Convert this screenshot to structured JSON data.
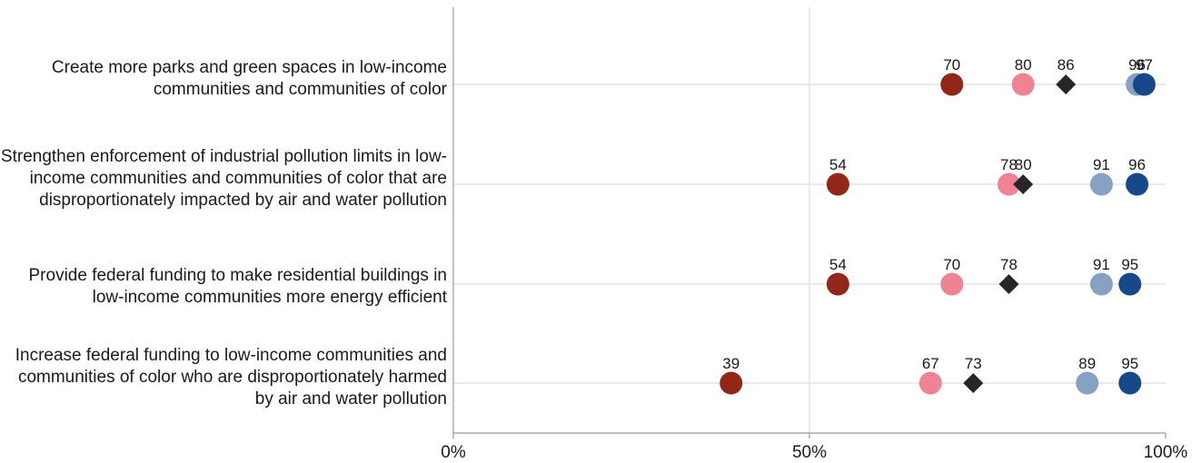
{
  "chart_data": {
    "type": "scatter",
    "orientation": "horizontal-dot-plot",
    "xlim": [
      0,
      100
    ],
    "x_ticks": [
      "0%",
      "50%",
      "100%"
    ],
    "grid": "vertical gridline at 50%",
    "legend": "none",
    "categories": [
      "Create more parks and green spaces in low-income communities and communities of color",
      "Strengthen enforcement of industrial pollution limits in low-income communities and communities of color that are disproportionately impacted by air and water pollution",
      "Provide federal funding to make residential buildings in low-income communities more energy efficient",
      "Increase federal funding to low-income communities and communities of color who are disproportionately harmed by air and water pollution"
    ],
    "series": [
      {
        "color": "#922619",
        "marker": "circle",
        "values": [
          70,
          54,
          54,
          39
        ]
      },
      {
        "color": "#ef8393",
        "marker": "circle",
        "values": [
          80,
          78,
          70,
          67
        ]
      },
      {
        "color": "#262626",
        "marker": "diamond",
        "values": [
          86,
          80,
          78,
          73
        ]
      },
      {
        "color": "#86a1c1",
        "marker": "circle",
        "values": [
          96,
          91,
          91,
          89
        ]
      },
      {
        "color": "#17488a",
        "marker": "circle",
        "values": [
          97,
          96,
          95,
          95
        ]
      }
    ]
  }
}
